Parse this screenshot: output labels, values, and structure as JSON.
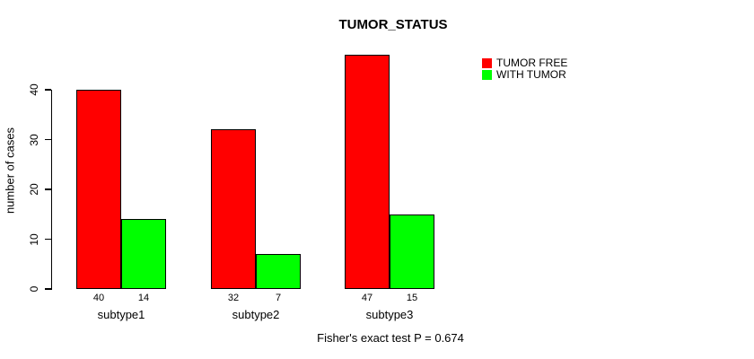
{
  "chart_data": {
    "type": "bar",
    "title": "TUMOR_STATUS",
    "xlabel": "",
    "ylabel": "number of cases",
    "categories": [
      "subtype1",
      "subtype2",
      "subtype3"
    ],
    "series": [
      {
        "name": "TUMOR FREE",
        "color": "#ff0000",
        "values": [
          40,
          32,
          47
        ]
      },
      {
        "name": "WITH TUMOR",
        "color": "#00ff00",
        "values": [
          14,
          7,
          15
        ]
      }
    ],
    "yticks": [
      0,
      10,
      20,
      30,
      40
    ],
    "ylim": [
      0,
      47
    ],
    "grid": false,
    "legend_position": "top-right",
    "bar_value_labels": [
      [
        "40",
        "14"
      ],
      [
        "32",
        "7"
      ],
      [
        "47",
        "15"
      ]
    ],
    "annotation": "Fisher's exact test P = 0.674"
  }
}
